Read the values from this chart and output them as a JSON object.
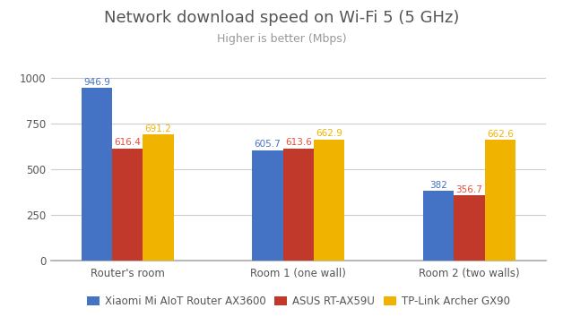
{
  "title": "Network download speed on Wi-Fi 5 (5 GHz)",
  "subtitle": "Higher is better (Mbps)",
  "categories": [
    "Router's room",
    "Room 1 (one wall)",
    "Room 2 (two walls)"
  ],
  "series": [
    {
      "name": "Xiaomi Mi AIoT Router AX3600",
      "color": "#4472C4",
      "label_color": "#4472C4",
      "values": [
        946.9,
        605.7,
        382
      ]
    },
    {
      "name": "ASUS RT-AX59U",
      "color": "#C0392B",
      "label_color": "#E74C3C",
      "values": [
        616.4,
        613.6,
        356.7
      ]
    },
    {
      "name": "TP-Link Archer GX90",
      "color": "#F0B400",
      "label_color": "#F0B400",
      "values": [
        691.2,
        662.9,
        662.6
      ]
    }
  ],
  "ylim": [
    0,
    1100
  ],
  "yticks": [
    0,
    250,
    500,
    750,
    1000
  ],
  "background_color": "#ffffff",
  "grid_color": "#cccccc",
  "title_fontsize": 13,
  "subtitle_fontsize": 9,
  "bar_width": 0.18,
  "legend_fontsize": 8.5,
  "tick_fontsize": 8.5,
  "label_fontsize": 7.5
}
